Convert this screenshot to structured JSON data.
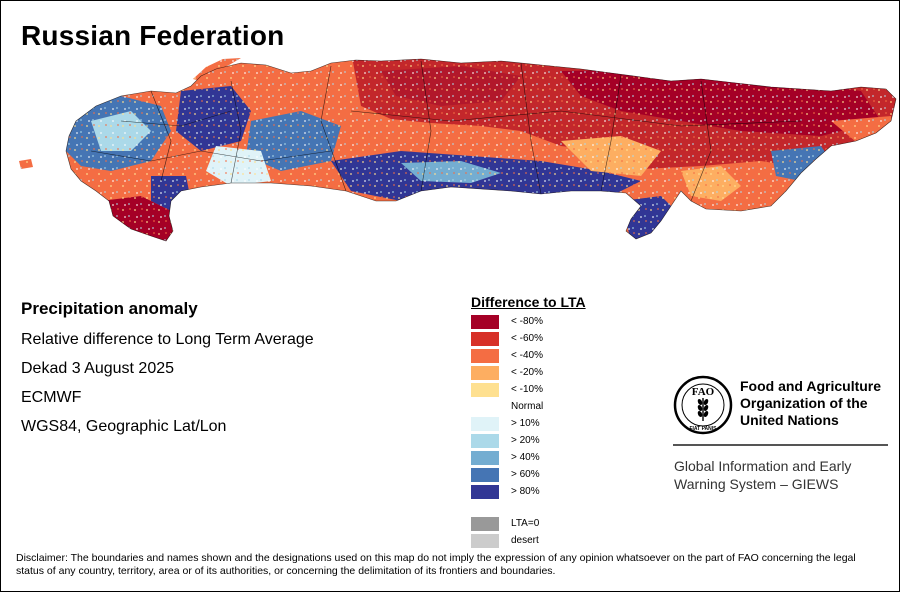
{
  "title": "Russian Federation",
  "info": {
    "heading": "Precipitation anomaly",
    "lines": [
      "Relative difference to Long Term Average",
      "Dekad 3 August 2025",
      "ECMWF",
      "WGS84, Geographic Lat/Lon"
    ]
  },
  "legend": {
    "title": "Difference to LTA",
    "dry": [
      {
        "label": "< -80%",
        "color": "#a50026"
      },
      {
        "label": "< -60%",
        "color": "#d73027"
      },
      {
        "label": "< -40%",
        "color": "#f46d43"
      },
      {
        "label": "< -20%",
        "color": "#fdae61"
      },
      {
        "label": "< -10%",
        "color": "#fee090"
      }
    ],
    "normal_label": "Normal",
    "wet": [
      {
        "label": "> 10%",
        "color": "#e0f3f8"
      },
      {
        "label": "> 20%",
        "color": "#abd9e9"
      },
      {
        "label": "> 40%",
        "color": "#74add1"
      },
      {
        "label": "> 60%",
        "color": "#4575b4"
      },
      {
        "label": "> 80%",
        "color": "#313695"
      }
    ],
    "other": [
      {
        "label": "LTA=0",
        "color": "#999999"
      },
      {
        "label": "desert",
        "color": "#cccccc"
      }
    ]
  },
  "fao": {
    "logo_letters": "FAO",
    "motto": "FIAT PANIS",
    "name_lines": [
      "Food and Agriculture",
      "Organization of the",
      "United Nations"
    ],
    "giews_lines": [
      "Global Information and Early",
      "Warning System – GIEWS"
    ]
  },
  "disclaimer": "Disclaimer: The boundaries and names shown and the designations used on this map do not imply the expression of any opinion whatsoever on the part of FAO concerning the legal status of any country, territory, area or of its authorities, or concerning the delimitation of its frontiers and boundaries."
}
